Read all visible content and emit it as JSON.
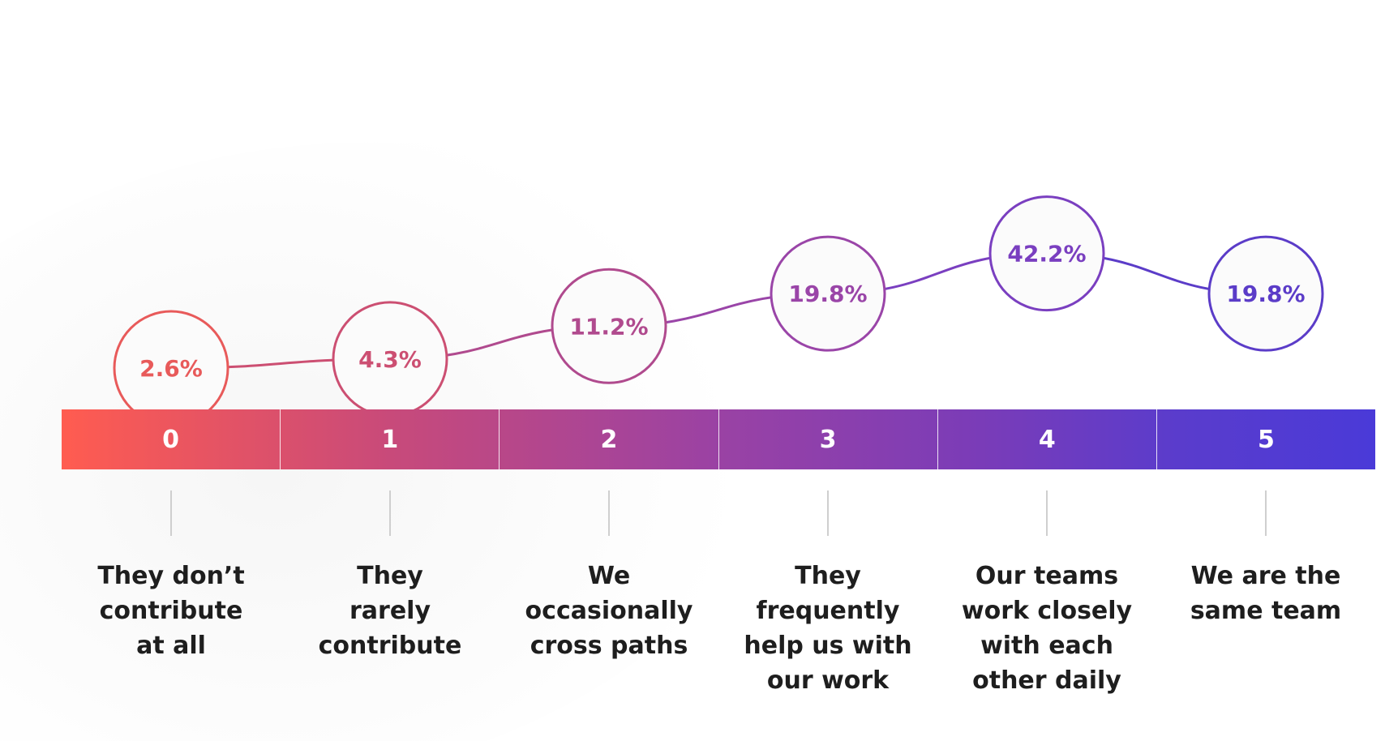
{
  "chart_data": {
    "type": "line",
    "categories": [
      "0",
      "1",
      "2",
      "3",
      "4",
      "5"
    ],
    "values": [
      2.6,
      4.3,
      11.2,
      19.8,
      42.2,
      19.8
    ],
    "value_labels": [
      "2.6%",
      "4.3%",
      "11.2%",
      "19.8%",
      "42.2%",
      "19.8%"
    ],
    "category_labels": [
      [
        "They don’t",
        "contribute",
        "at all"
      ],
      [
        "They",
        "rarely",
        "contribute"
      ],
      [
        "We",
        "occasionally",
        "cross paths"
      ],
      [
        "They",
        "frequently",
        "help us with",
        "our work"
      ],
      [
        "Our teams",
        "work closely",
        "with each",
        "other daily"
      ],
      [
        "We are the",
        "same team"
      ]
    ],
    "colors": [
      "#e85a5a",
      "#cc4f72",
      "#b04a8e",
      "#9a45a8",
      "#7a3fc0",
      "#5b3cc8"
    ],
    "ylim": [
      0,
      45
    ],
    "legend": "none",
    "grid": false
  }
}
